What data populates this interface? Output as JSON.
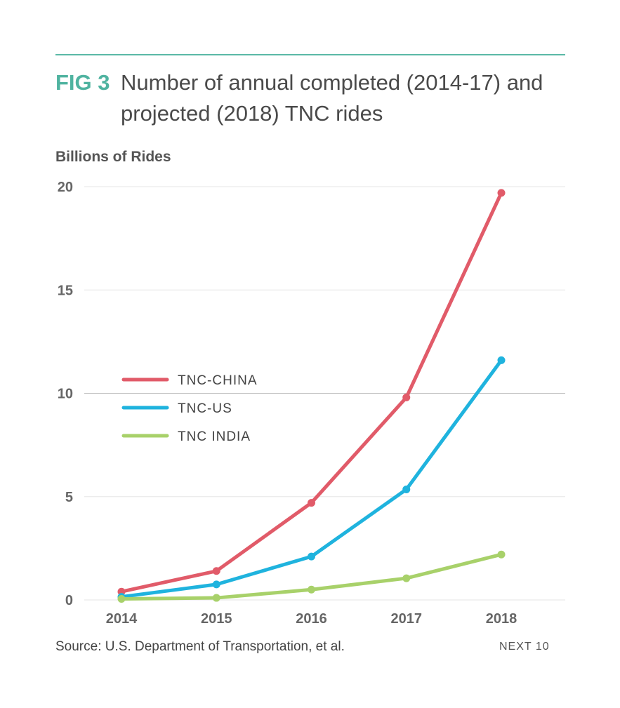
{
  "header": {
    "fig_label": "FIG 3",
    "title": "Number of annual completed (2014-17) and projected (2018) TNC rides"
  },
  "footer": {
    "source": "Source: U.S. Department of Transportation, et al.",
    "brand": "NEXT 10"
  },
  "chart_data": {
    "type": "line",
    "title": "Number of annual completed (2014-17) and projected (2018) TNC rides",
    "ylabel": "Billions of Rides",
    "xlabel": "",
    "x": [
      "2014",
      "2015",
      "2016",
      "2017",
      "2018"
    ],
    "ylim": [
      0,
      20
    ],
    "yticks": [
      0,
      5,
      10,
      15,
      20
    ],
    "grid": true,
    "legend_position": "center-left",
    "series": [
      {
        "name": "TNC-CHINA",
        "color": "#e15b69",
        "values": [
          0.4,
          1.4,
          4.7,
          9.8,
          19.7
        ]
      },
      {
        "name": "TNC-US",
        "color": "#1fb3de",
        "values": [
          0.15,
          0.75,
          2.1,
          5.35,
          11.6
        ]
      },
      {
        "name": "TNC INDIA",
        "color": "#a8d16a",
        "values": [
          0.05,
          0.1,
          0.5,
          1.05,
          2.2
        ]
      }
    ]
  }
}
